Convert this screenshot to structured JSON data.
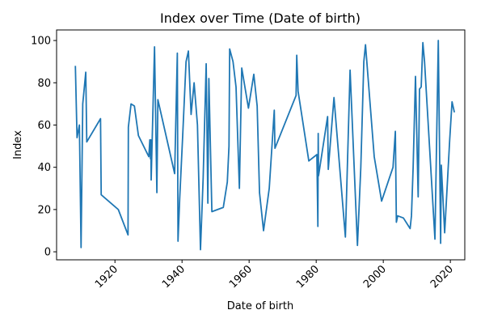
{
  "chart_data": {
    "type": "line",
    "title": "Index over Time (Date of birth)",
    "x_label": "Date of birth",
    "y_label": "Index",
    "x": [
      1908.2,
      1908.7,
      1909.4,
      1909.9,
      1910.4,
      1911.3,
      1911.6,
      1915.7,
      1915.9,
      1921.0,
      1923.9,
      1924.0,
      1924.8,
      1925.8,
      1927.0,
      1930.1,
      1930.4,
      1930.6,
      1930.7,
      1930.8,
      1931.8,
      1932.5,
      1932.8,
      1937.8,
      1938.6,
      1938.8,
      1939.3,
      1940.2,
      1941.2,
      1941.9,
      1942.7,
      1943.6,
      1944.6,
      1945.5,
      1946.3,
      1947.2,
      1947.7,
      1948.0,
      1948.9,
      1952.3,
      1953.5,
      1954.0,
      1954.2,
      1955.2,
      1956.1,
      1957.1,
      1957.8,
      1959.8,
      1961.4,
      1962.4,
      1963.1,
      1964.3,
      1966.0,
      1967.5,
      1967.7,
      1974.0,
      1974.2,
      1974.6,
      1977.8,
      1980.2,
      1980.5,
      1980.6,
      1980.7,
      1983.4,
      1983.6,
      1985.3,
      1988.7,
      1990.1,
      1992.3,
      1993.3,
      1994.2,
      1994.7,
      1997.3,
      1999.5,
      2002.9,
      2003.6,
      2003.9,
      2004.3,
      2006.0,
      2008.0,
      2008.4,
      2008.9,
      2009.6,
      2010.4,
      2010.8,
      2011.3,
      2011.8,
      2012.3,
      2015.4,
      2016.4,
      2017.1,
      2017.3,
      2018.3,
      2019.8,
      2020.5,
      2021.2
    ],
    "series": [
      {
        "name": "Index",
        "color": "#1f77b4",
        "values": [
          88,
          54,
          60,
          2,
          70,
          85,
          52,
          63,
          27,
          20,
          8,
          59,
          70,
          69,
          55,
          45,
          53,
          44,
          53,
          34,
          97,
          28,
          72,
          37,
          94,
          5,
          25,
          55,
          90,
          95,
          65,
          80,
          60,
          1,
          35,
          89,
          23,
          82,
          19,
          21,
          33,
          50,
          96,
          90,
          78,
          30,
          87,
          68,
          84,
          69,
          28,
          10,
          30,
          67,
          49,
          74,
          93,
          76,
          43,
          46,
          12,
          56,
          36,
          64,
          39,
          73,
          7,
          86,
          3,
          40,
          90,
          98,
          45,
          24,
          40,
          57,
          14,
          17,
          16,
          11,
          17,
          40,
          83,
          26,
          77,
          78,
          99,
          90,
          6,
          100,
          4,
          41,
          9,
          53,
          71,
          66
        ]
      }
    ],
    "xlim": [
      1902.6,
      2024.3
    ],
    "ylim": [
      -3.8,
      105
    ],
    "xticks": [
      1920,
      1940,
      1960,
      1980,
      2000,
      2020
    ],
    "yticks": [
      0,
      20,
      40,
      60,
      80,
      100
    ]
  }
}
